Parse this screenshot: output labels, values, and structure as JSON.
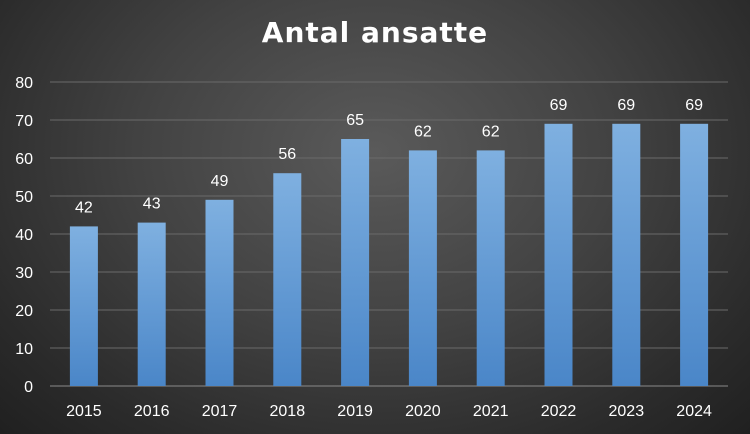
{
  "chart_data": {
    "type": "bar",
    "title": "Antal ansatte",
    "categories": [
      "2015",
      "2016",
      "2017",
      "2018",
      "2019",
      "2020",
      "2021",
      "2022",
      "2023",
      "2024"
    ],
    "values": [
      42,
      43,
      49,
      56,
      65,
      62,
      62,
      69,
      69,
      69
    ],
    "ylim": [
      0,
      80
    ],
    "yticks": [
      0,
      10,
      20,
      30,
      40,
      50,
      60,
      70,
      80
    ],
    "grid": true,
    "data_labels": true,
    "colors": {
      "bar_top": "#7fb0e0",
      "bar_bottom": "#4a86c8"
    }
  }
}
